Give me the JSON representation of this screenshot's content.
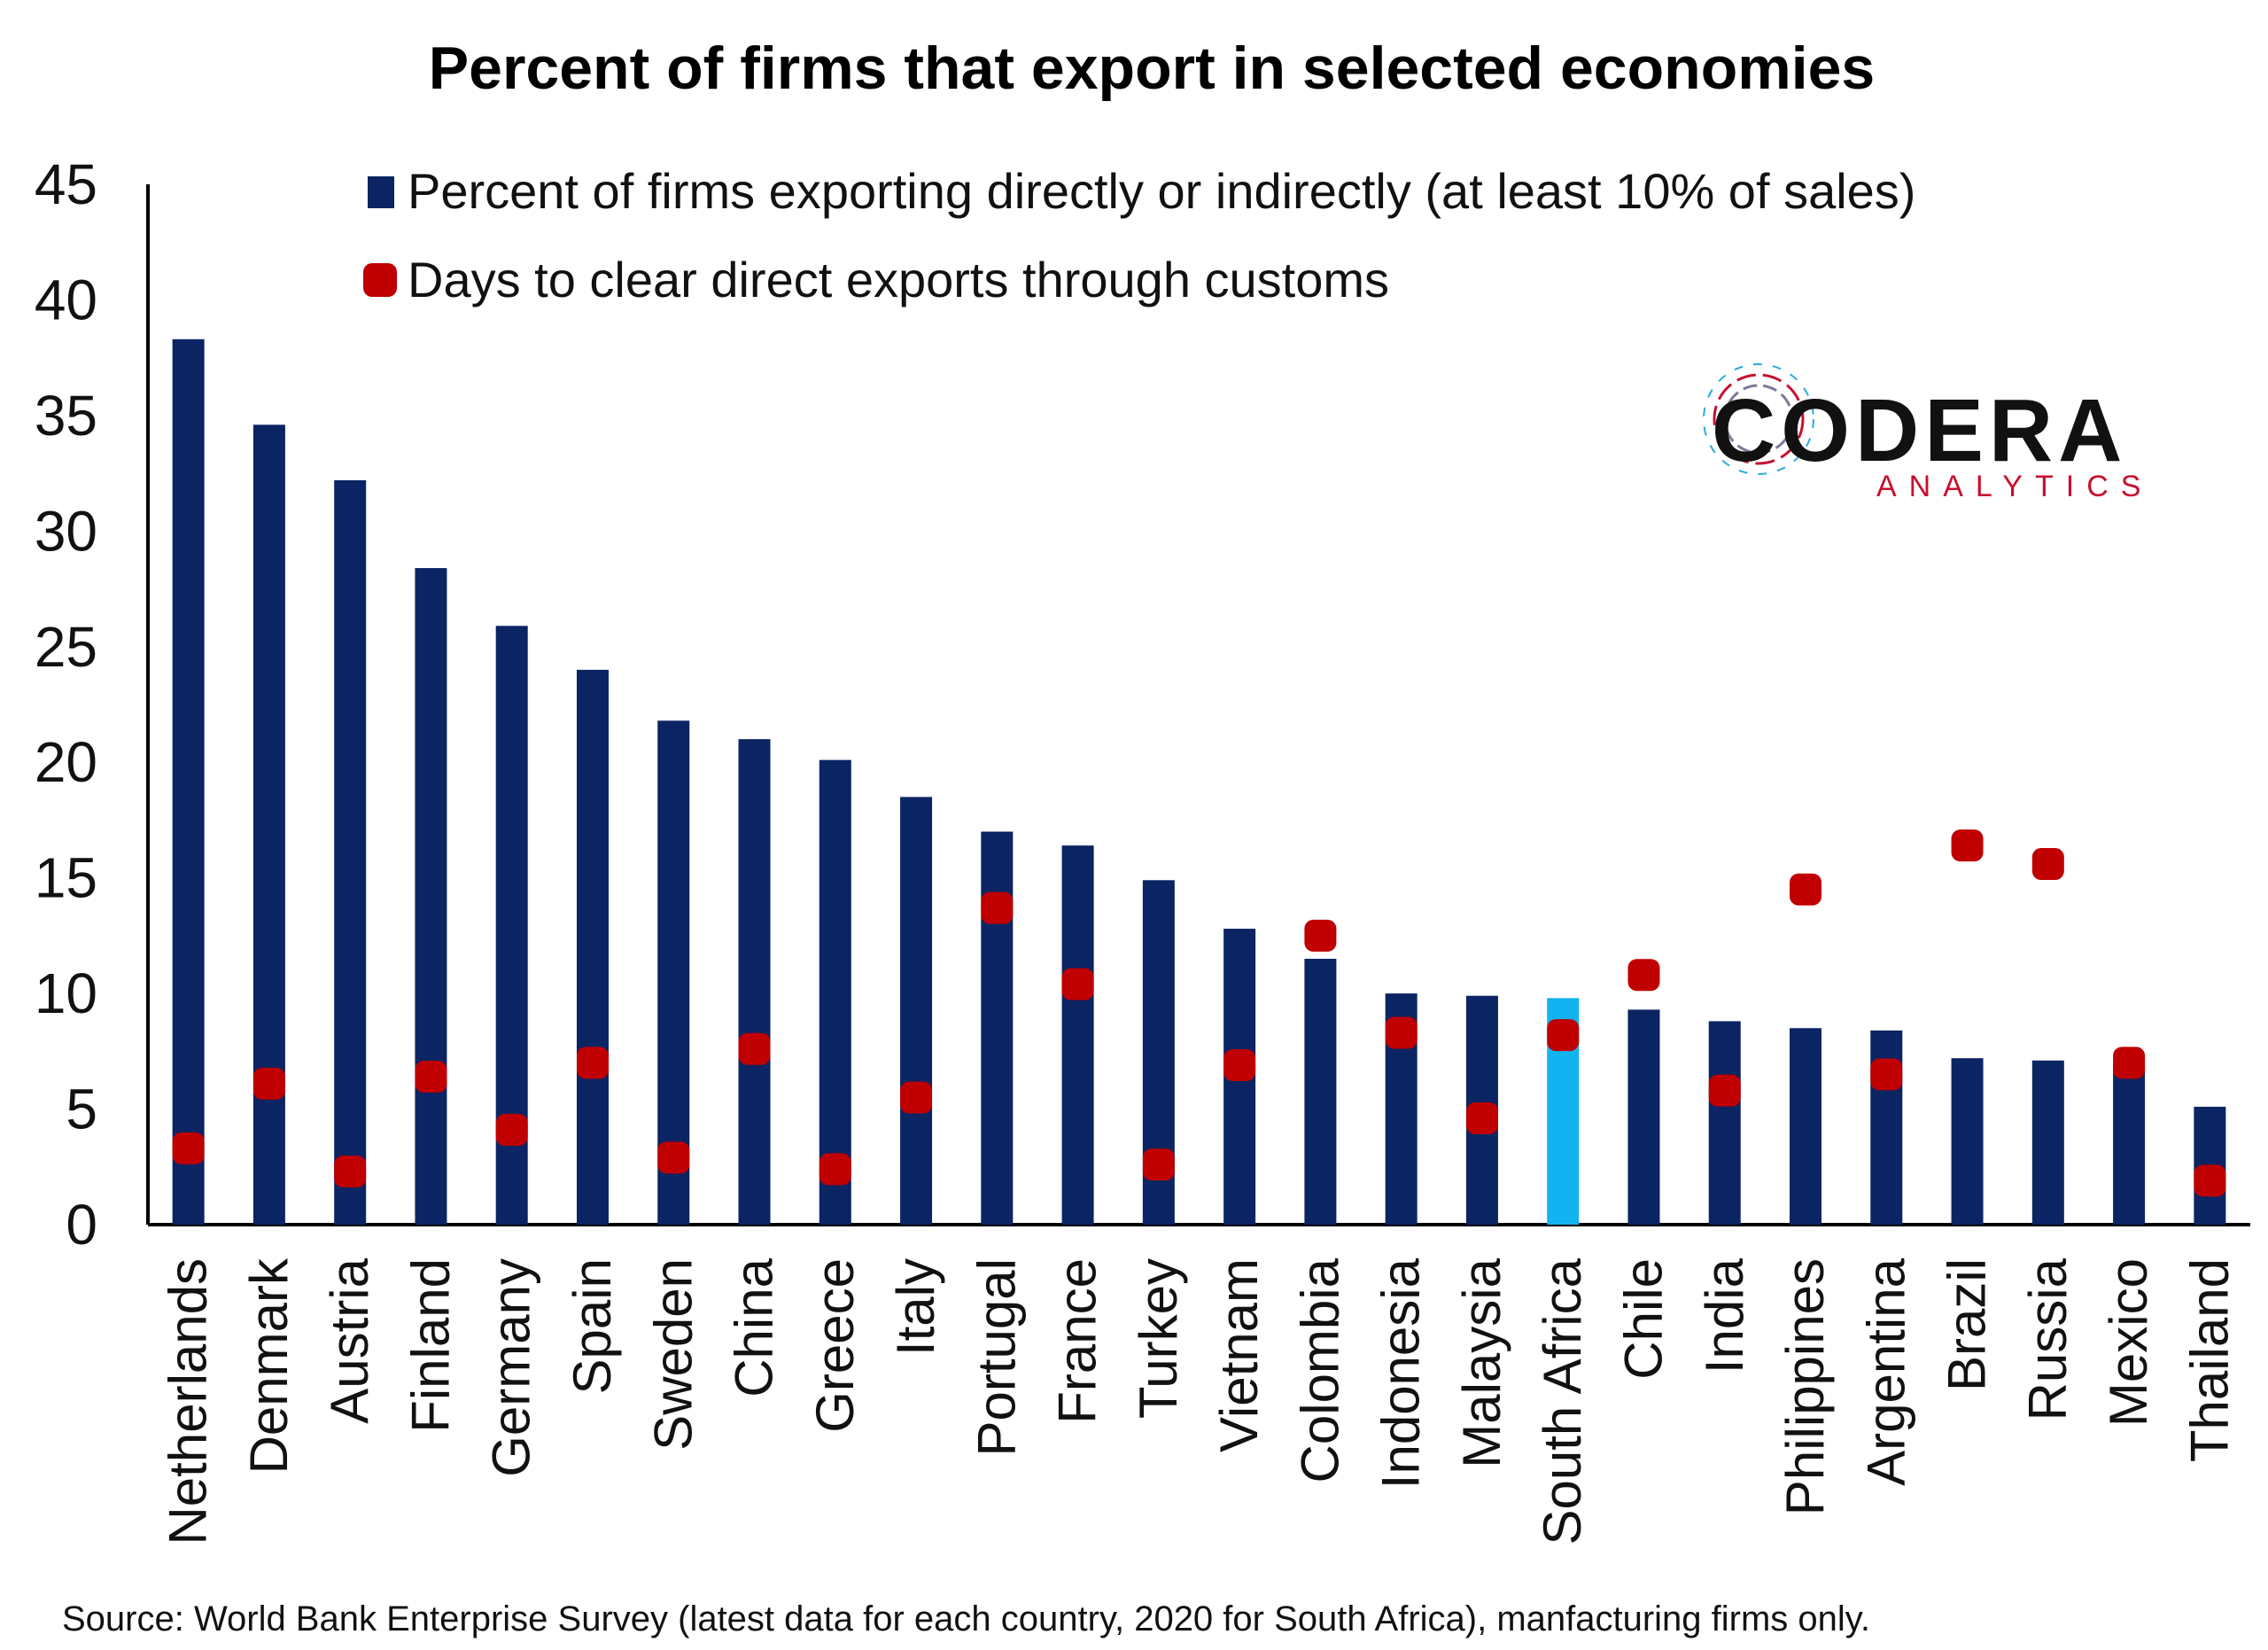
{
  "chart_data": {
    "type": "bar",
    "title": "Percent of firms that export in selected economies",
    "categories": [
      "Netherlands",
      "Denmark",
      "Austria",
      "Finland",
      "Germany",
      "Spain",
      "Sweden",
      "China",
      "Greece",
      "Italy",
      "Portugal",
      "France",
      "Turkey",
      "Vietnam",
      "Colombia",
      "Indonesia",
      "Malaysia",
      "South Africa",
      "Chile",
      "India",
      "Philippines",
      "Argentina",
      "Brazil",
      "Russia",
      "Mexico",
      "Thailand"
    ],
    "series": [
      {
        "name": "Percent of firms exporting directly or indirectly (at least 10% of sales)",
        "type": "bar",
        "color": "#0b2463",
        "values": [
          38.3,
          34.6,
          32.2,
          28.4,
          25.9,
          24.0,
          21.8,
          21.0,
          20.1,
          18.5,
          17.0,
          16.4,
          14.9,
          12.8,
          11.5,
          10.0,
          9.9,
          9.8,
          9.3,
          8.8,
          8.5,
          8.4,
          7.2,
          7.1,
          6.9,
          5.1
        ]
      },
      {
        "name": "Days to clear direct exports through customs",
        "type": "marker",
        "color": "#c00000",
        "values": [
          3.3,
          6.1,
          2.3,
          6.4,
          4.1,
          7.0,
          2.9,
          7.6,
          2.4,
          5.5,
          13.7,
          10.4,
          2.6,
          6.9,
          12.5,
          8.3,
          4.6,
          8.2,
          10.8,
          5.8,
          14.5,
          6.5,
          16.4,
          15.6,
          7.0,
          1.9
        ]
      }
    ],
    "highlight": {
      "category": "South Africa",
      "color": "#12b3ee"
    },
    "yticks": [
      "0",
      "5",
      "10",
      "15",
      "20",
      "25",
      "30",
      "35",
      "40",
      "45"
    ],
    "ylim": [
      0,
      45
    ],
    "xlabel": "",
    "ylabel": "",
    "grid": false,
    "legend_position": "top-center"
  },
  "source": "Source: World Bank Enterprise Survey (latest data for each country, 2020 for South Africa), manfacturing firms only.",
  "logo": {
    "name": "CODERA",
    "tagline": "ANALYTICS"
  }
}
